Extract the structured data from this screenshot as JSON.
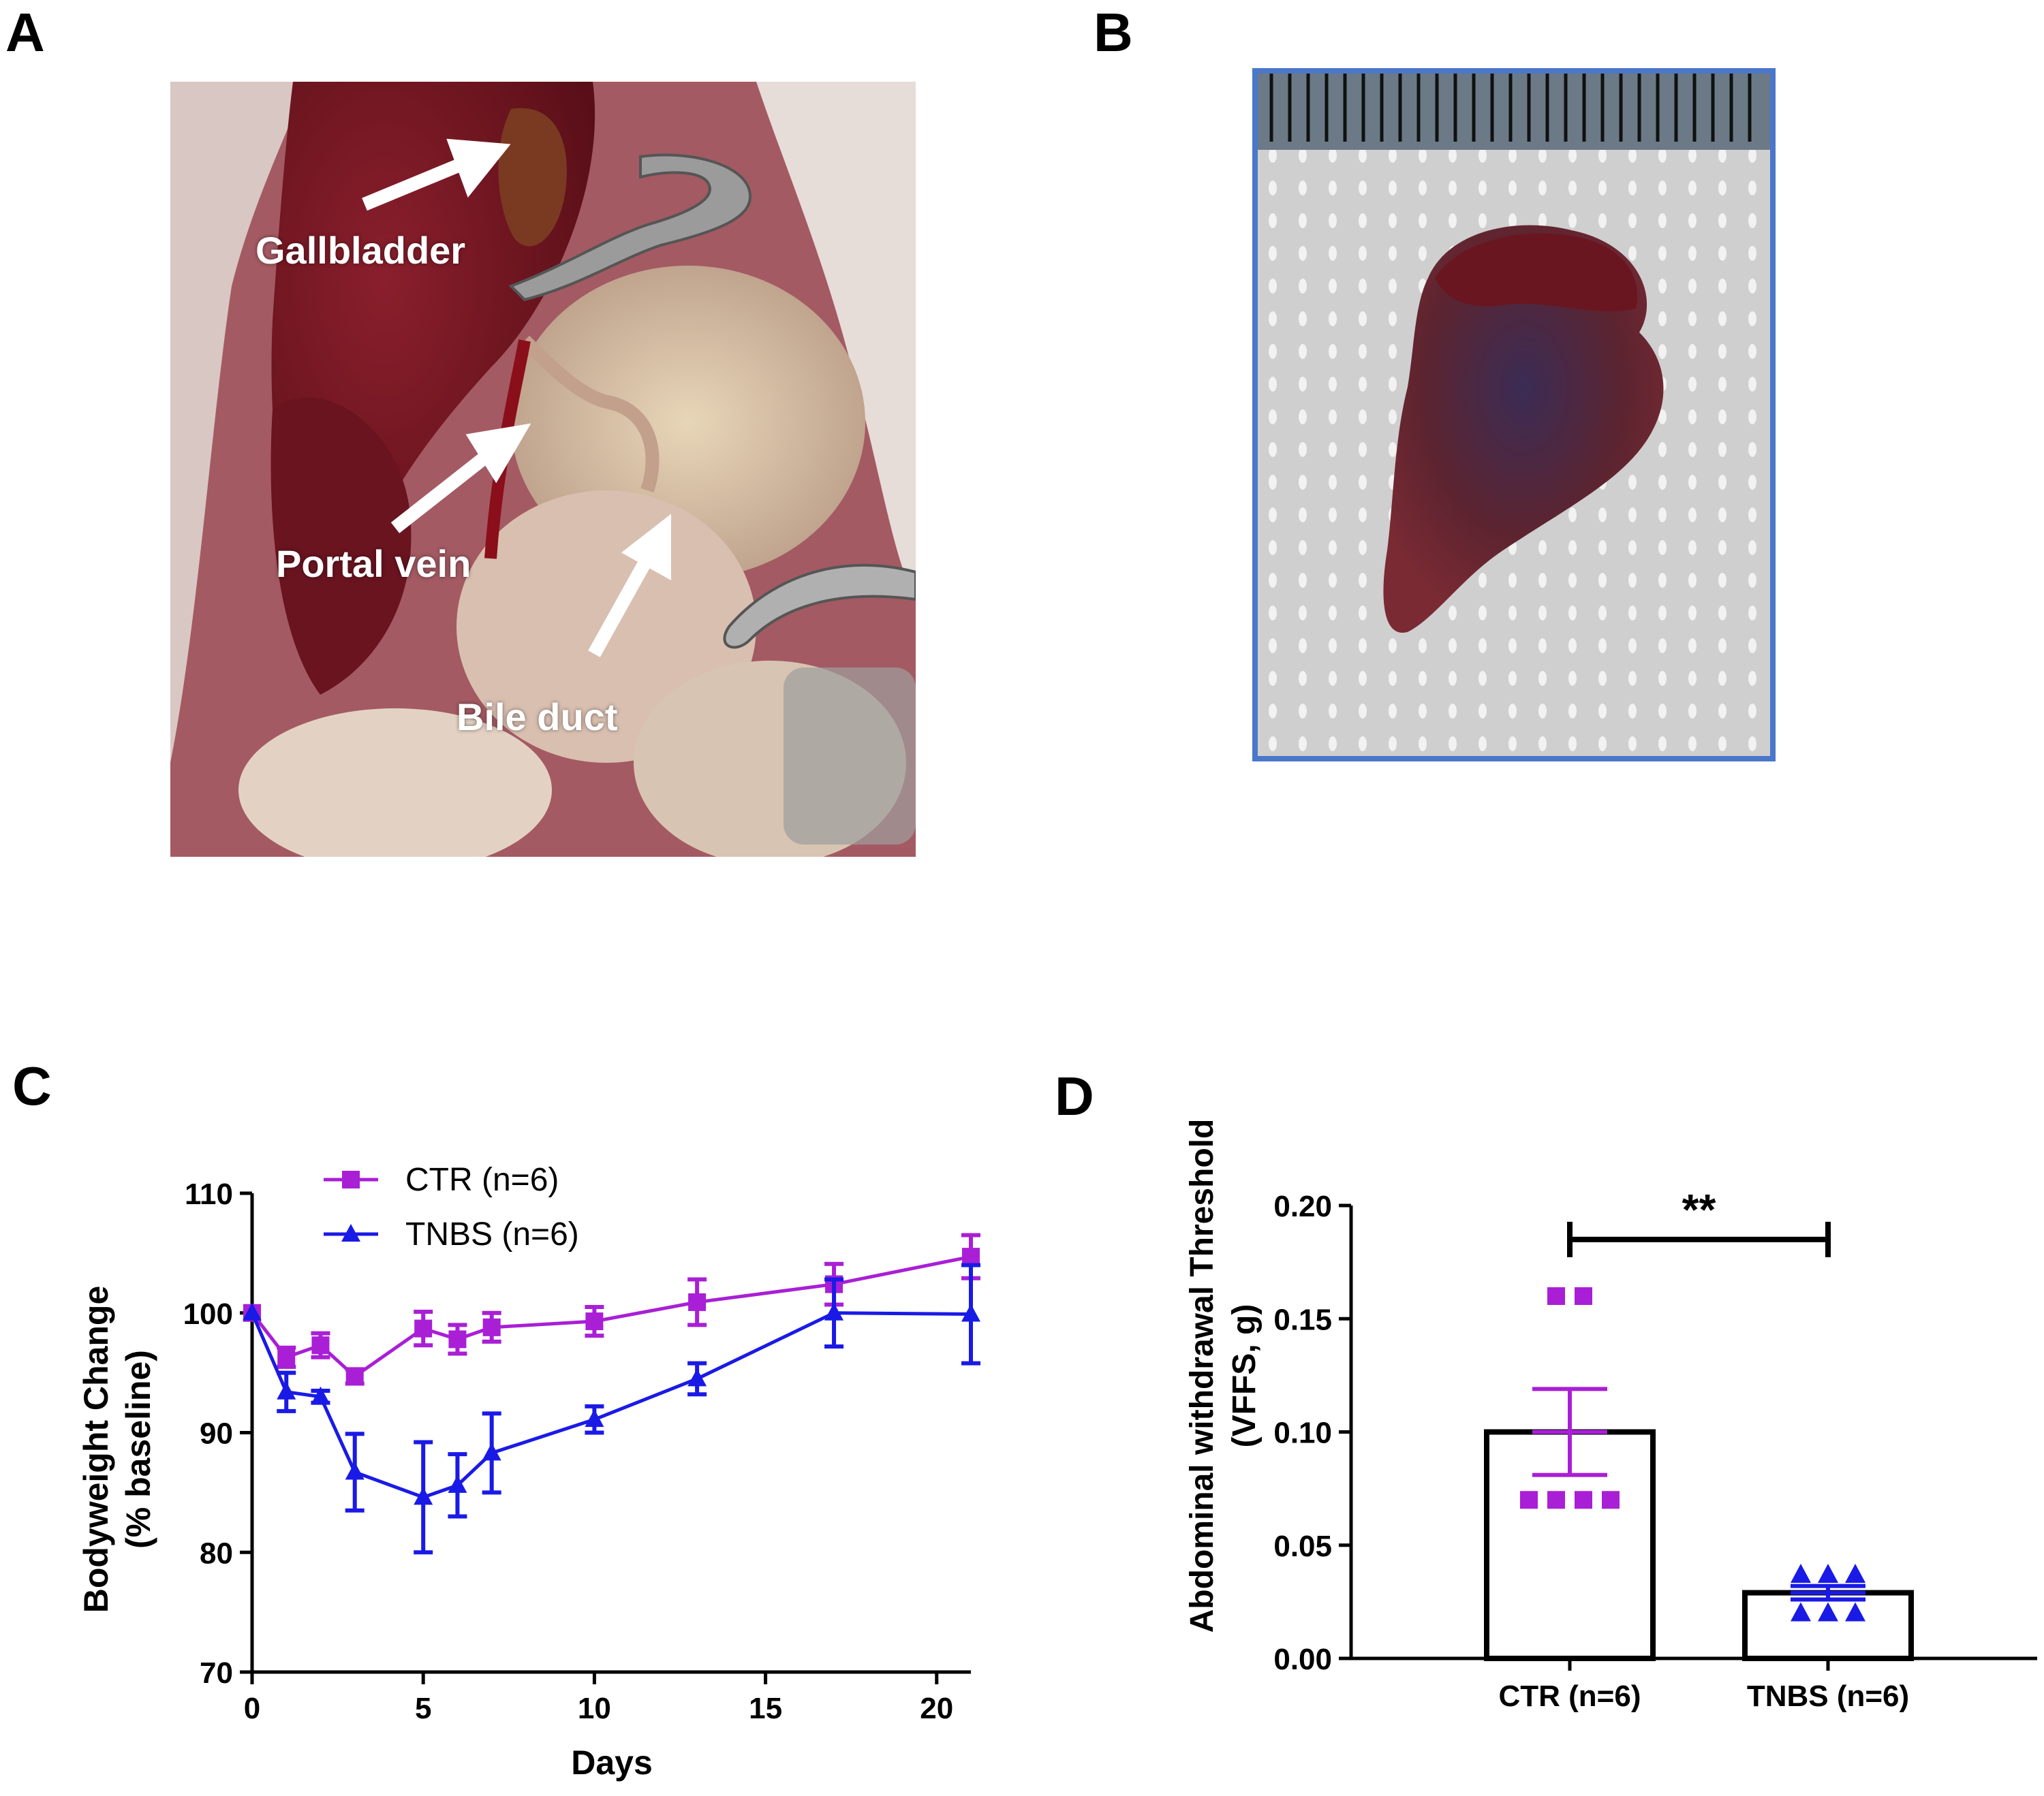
{
  "panels": {
    "a": "A",
    "b": "B",
    "c": "C",
    "d": "D"
  },
  "photo_a": {
    "labels": {
      "gallbladder": "Gallbladder",
      "portal_vein": "Portal vein",
      "bile_duct": "Bile duct"
    }
  },
  "colors": {
    "ctr": "#a91fd6",
    "tnbs": "#1a1ae6",
    "photo_b_border": "#4a77c9"
  },
  "chart_data": [
    {
      "type": "line",
      "panel": "C",
      "xlabel": "Days",
      "ylabel_line1": "Bodyweight Change",
      "ylabel_line2": "(% baseline)",
      "xlim": [
        0,
        21
      ],
      "ylim": [
        70,
        110
      ],
      "xticks": [
        0,
        5,
        10,
        15,
        20
      ],
      "yticks": [
        70,
        80,
        90,
        100,
        110
      ],
      "legend": "top-left",
      "series": [
        {
          "name": "CTR (n=6)",
          "marker": "square",
          "x": [
            0,
            1,
            2,
            3,
            5,
            6,
            7,
            10,
            13,
            17,
            21
          ],
          "y": [
            100,
            96.3,
            97.3,
            94.7,
            98.7,
            97.8,
            98.8,
            99.3,
            100.9,
            102.4,
            104.7
          ],
          "err": [
            0,
            0.8,
            1.0,
            0.6,
            1.4,
            1.2,
            1.2,
            1.2,
            1.9,
            1.7,
            1.8
          ]
        },
        {
          "name": "TNBS (n=6)",
          "marker": "triangle",
          "x": [
            0,
            1,
            2,
            3,
            5,
            6,
            7,
            10,
            13,
            17,
            21
          ],
          "y": [
            100,
            93.4,
            93.0,
            86.7,
            84.6,
            85.6,
            88.3,
            91.1,
            94.5,
            100.0,
            99.9
          ],
          "err": [
            0,
            1.6,
            0.5,
            3.2,
            4.6,
            2.6,
            3.3,
            1.1,
            1.3,
            2.8,
            4.1
          ]
        }
      ]
    },
    {
      "type": "bar",
      "panel": "D",
      "ylabel_line1": "Abdominal withdrawal Threshold",
      "ylabel_line2": "(VFFS, g)",
      "categories": [
        "CTR (n=6)",
        "TNBS (n=6)"
      ],
      "values": [
        0.1,
        0.029
      ],
      "sem": [
        0.019,
        0.003
      ],
      "points": [
        [
          0.16,
          0.16,
          0.07,
          0.07,
          0.07,
          0.07
        ],
        [
          0.037,
          0.037,
          0.037,
          0.02,
          0.02,
          0.02
        ]
      ],
      "ylim": [
        0,
        0.2
      ],
      "yticks": [
        "0.00",
        "0.05",
        "0.10",
        "0.15",
        "0.20"
      ],
      "significance": "**"
    }
  ]
}
